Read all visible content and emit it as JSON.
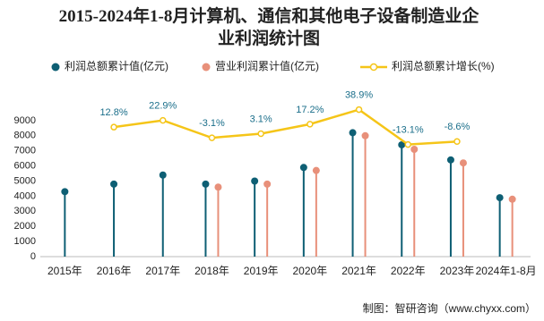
{
  "chart_data": {
    "type": "lollipop",
    "title": "2015-2024年1-8月计算机、通信和其他电子设备制造业企业利润统计图",
    "source": "制图：智研咨询（www.chyxx.com）",
    "categories": [
      "2015年",
      "2016年",
      "2017年",
      "2018年",
      "2019年",
      "2020年",
      "2021年",
      "2022年",
      "2023年",
      "2024年1-8月"
    ],
    "series": [
      {
        "name": "利润总额累计值(亿元)",
        "color": "#0e5f74",
        "values": [
          4300,
          4800,
          5400,
          4800,
          5000,
          5900,
          8200,
          7400,
          6400,
          3900
        ]
      },
      {
        "name": "营业利润累计值(亿元)",
        "color": "#e8907a",
        "values": [
          null,
          null,
          null,
          4600,
          4800,
          5700,
          8000,
          7100,
          6200,
          3800
        ]
      },
      {
        "name": "利润总额累计增长(%)",
        "color": "#f5c518",
        "type": "line",
        "axis": "y2",
        "values": [
          null,
          12.8,
          22.9,
          -3.1,
          3.1,
          17.2,
          38.9,
          -13.1,
          -8.6,
          null
        ],
        "value_labels": [
          null,
          "12.8%",
          "22.9%",
          "-3.1%",
          "3.1%",
          "17.2%",
          "38.9%",
          "-13.1%",
          "-8.6%",
          null
        ]
      }
    ],
    "ylim": [
      0,
      10000
    ],
    "yticks": [
      0,
      1000,
      2000,
      3000,
      4000,
      5000,
      6000,
      7000,
      8000,
      9000
    ],
    "y2lim": [
      -180,
      45
    ],
    "grid": false
  }
}
